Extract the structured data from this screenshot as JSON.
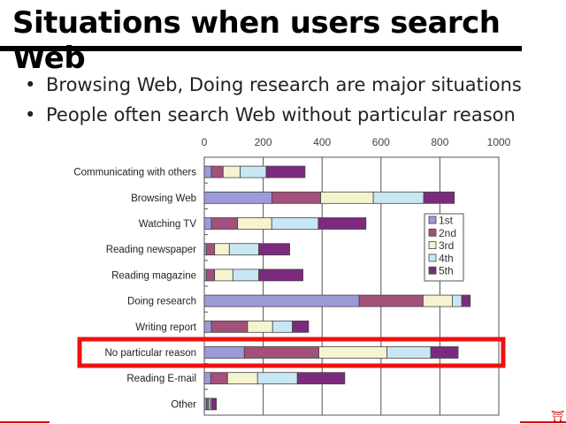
{
  "slide": {
    "title": "Situations when users search Web",
    "bullets": [
      "Browsing Web, Doing research are major situations",
      "People often search Web without particular reason"
    ],
    "highlight_color": "#ee1111",
    "highlighted_category": "No particular reason"
  },
  "chart_data": {
    "type": "bar",
    "orientation": "horizontal",
    "stacked": true,
    "xlim": [
      0,
      1000
    ],
    "xticks": [
      "0",
      "200",
      "400",
      "600",
      "800",
      "1000"
    ],
    "grid": true,
    "legend_position": "right",
    "categories": [
      "Communicating with others",
      "Browsing Web",
      "Watching TV",
      "Reading newspaper",
      "Reading magazine",
      "Doing research",
      "Writing report",
      "No particular reason",
      "Reading E-mail",
      "Other"
    ],
    "series": [
      {
        "name": "1st",
        "color": "#9b9bd8",
        "values": [
          24,
          230,
          24,
          7,
          7,
          526,
          24,
          136,
          22,
          7
        ]
      },
      {
        "name": "2nd",
        "color": "#a3507a",
        "values": [
          40,
          165,
          89,
          28,
          28,
          217,
          123,
          253,
          57,
          7
        ]
      },
      {
        "name": "3rd",
        "color": "#f6f3cf",
        "values": [
          58,
          179,
          116,
          50,
          62,
          99,
          85,
          231,
          102,
          5
        ]
      },
      {
        "name": "4th",
        "color": "#c9e7f3",
        "values": [
          88,
          171,
          158,
          100,
          88,
          32,
          67,
          149,
          135,
          5
        ]
      },
      {
        "name": "5th",
        "color": "#7c2a7e",
        "values": [
          132,
          104,
          162,
          105,
          150,
          29,
          55,
          93,
          161,
          17
        ]
      }
    ]
  }
}
